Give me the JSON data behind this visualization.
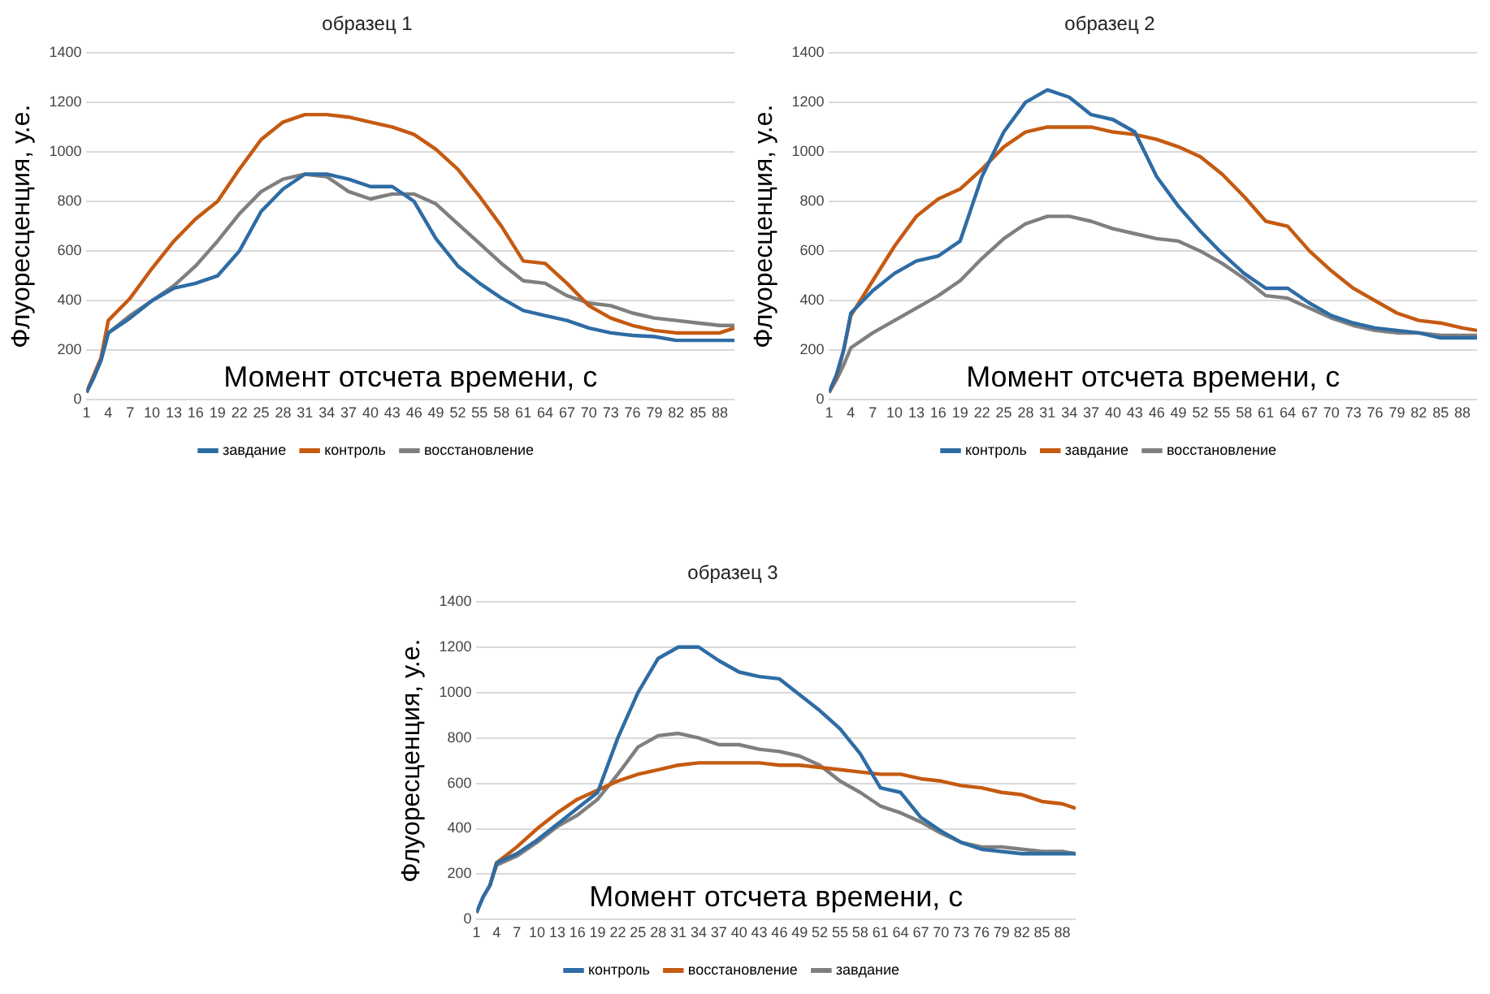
{
  "chart_data": [
    {
      "type": "line",
      "title": "образец 1",
      "xlabel": "Момент отсчета времени, с",
      "ylabel": "Флуоресценция, у.е.",
      "xlim": [
        1,
        90
      ],
      "xticks": [
        1,
        4,
        7,
        10,
        13,
        16,
        19,
        22,
        25,
        28,
        31,
        34,
        37,
        40,
        43,
        46,
        49,
        52,
        55,
        58,
        61,
        64,
        67,
        70,
        73,
        76,
        79,
        82,
        85,
        88
      ],
      "ylim": [
        0,
        1400
      ],
      "yticks": [
        0,
        200,
        400,
        600,
        800,
        1000,
        1200,
        1400
      ],
      "grid": "y",
      "legend": "bottom",
      "marker": "none",
      "line_style": "solid",
      "x": [
        1,
        2,
        3,
        4,
        7,
        10,
        13,
        16,
        19,
        22,
        25,
        28,
        31,
        34,
        37,
        40,
        43,
        46,
        49,
        52,
        55,
        58,
        61,
        64,
        67,
        70,
        73,
        76,
        79,
        82,
        85,
        88,
        90
      ],
      "series": [
        {
          "name": "завдание",
          "color": "#2e6ca4",
          "values": [
            30,
            90,
            160,
            270,
            330,
            400,
            450,
            470,
            500,
            600,
            760,
            850,
            910,
            910,
            890,
            860,
            860,
            800,
            650,
            540,
            470,
            410,
            360,
            340,
            320,
            290,
            270,
            260,
            255,
            240,
            240,
            240,
            240
          ]
        },
        {
          "name": "контроль",
          "color": "#c55a11",
          "values": [
            30,
            100,
            170,
            320,
            410,
            530,
            640,
            730,
            800,
            930,
            1050,
            1120,
            1150,
            1150,
            1140,
            1120,
            1100,
            1070,
            1010,
            930,
            820,
            700,
            560,
            550,
            470,
            380,
            330,
            300,
            280,
            270,
            270,
            270,
            290
          ]
        },
        {
          "name": "восстановление",
          "color": "#7f7f7f",
          "values": [
            30,
            90,
            160,
            270,
            340,
            400,
            460,
            540,
            640,
            750,
            840,
            890,
            910,
            900,
            840,
            810,
            830,
            830,
            790,
            710,
            630,
            550,
            480,
            470,
            420,
            390,
            380,
            350,
            330,
            320,
            310,
            300,
            300
          ]
        }
      ]
    },
    {
      "type": "line",
      "title": "образец 2",
      "xlabel": "Момент отсчета времени, с",
      "ylabel": "Флуоресценция, у.е.",
      "xlim": [
        1,
        90
      ],
      "xticks": [
        1,
        4,
        7,
        10,
        13,
        16,
        19,
        22,
        25,
        28,
        31,
        34,
        37,
        40,
        43,
        46,
        49,
        52,
        55,
        58,
        61,
        64,
        67,
        70,
        73,
        76,
        79,
        82,
        85,
        88
      ],
      "ylim": [
        0,
        1400
      ],
      "yticks": [
        0,
        200,
        400,
        600,
        800,
        1000,
        1200,
        1400
      ],
      "grid": "y",
      "legend": "bottom",
      "marker": "none",
      "line_style": "solid",
      "x": [
        1,
        2,
        3,
        4,
        7,
        10,
        13,
        16,
        19,
        22,
        25,
        28,
        31,
        34,
        37,
        40,
        43,
        46,
        49,
        52,
        55,
        58,
        61,
        64,
        67,
        70,
        73,
        76,
        79,
        82,
        85,
        88,
        90
      ],
      "series": [
        {
          "name": "контроль",
          "color": "#2e6ca4",
          "values": [
            30,
            100,
            200,
            350,
            440,
            510,
            560,
            580,
            640,
            900,
            1080,
            1200,
            1250,
            1220,
            1150,
            1130,
            1080,
            900,
            780,
            680,
            590,
            510,
            450,
            450,
            390,
            340,
            310,
            290,
            280,
            270,
            250,
            250,
            250
          ]
        },
        {
          "name": "завдание",
          "color": "#c55a11",
          "values": [
            30,
            90,
            200,
            340,
            480,
            620,
            740,
            810,
            850,
            930,
            1020,
            1080,
            1100,
            1100,
            1100,
            1080,
            1070,
            1050,
            1020,
            980,
            910,
            820,
            720,
            700,
            600,
            520,
            450,
            400,
            350,
            320,
            310,
            290,
            280
          ]
        },
        {
          "name": "восстановление",
          "color": "#7f7f7f",
          "values": [
            30,
            80,
            140,
            210,
            270,
            320,
            370,
            420,
            480,
            570,
            650,
            710,
            740,
            740,
            720,
            690,
            670,
            650,
            640,
            600,
            550,
            490,
            420,
            410,
            370,
            330,
            300,
            280,
            270,
            270,
            260,
            260,
            260
          ]
        }
      ]
    },
    {
      "type": "line",
      "title": "образец 3",
      "xlabel": "Момент отсчета времени, с",
      "ylabel": "Флуоресценция, у.е.",
      "xlim": [
        1,
        90
      ],
      "xticks": [
        1,
        4,
        7,
        10,
        13,
        16,
        19,
        22,
        25,
        28,
        31,
        34,
        37,
        40,
        43,
        46,
        49,
        52,
        55,
        58,
        61,
        64,
        67,
        70,
        73,
        76,
        79,
        82,
        85,
        88
      ],
      "ylim": [
        0,
        1400
      ],
      "yticks": [
        0,
        200,
        400,
        600,
        800,
        1000,
        1200,
        1400
      ],
      "grid": "y",
      "legend": "bottom",
      "marker": "none",
      "line_style": "solid",
      "x": [
        1,
        2,
        3,
        4,
        7,
        10,
        13,
        16,
        19,
        22,
        25,
        28,
        31,
        34,
        37,
        40,
        43,
        46,
        49,
        52,
        55,
        58,
        61,
        64,
        67,
        70,
        73,
        76,
        79,
        82,
        85,
        88,
        90
      ],
      "series": [
        {
          "name": "контроль",
          "color": "#2e6ca4",
          "values": [
            30,
            100,
            150,
            250,
            290,
            350,
            420,
            490,
            560,
            800,
            1000,
            1150,
            1200,
            1200,
            1140,
            1090,
            1070,
            1060,
            990,
            920,
            840,
            730,
            580,
            560,
            450,
            390,
            340,
            310,
            300,
            290,
            290,
            290,
            290
          ]
        },
        {
          "name": "восстановление",
          "color": "#c55a11",
          "values": [
            null,
            null,
            150,
            250,
            320,
            400,
            470,
            530,
            570,
            610,
            640,
            660,
            680,
            690,
            690,
            690,
            690,
            680,
            680,
            670,
            660,
            650,
            640,
            640,
            620,
            610,
            590,
            580,
            560,
            550,
            520,
            510,
            490
          ]
        },
        {
          "name": "завдание",
          "color": "#7f7f7f",
          "values": [
            30,
            100,
            150,
            240,
            280,
            340,
            410,
            460,
            530,
            640,
            760,
            810,
            820,
            800,
            770,
            770,
            750,
            740,
            720,
            680,
            610,
            560,
            500,
            470,
            430,
            380,
            340,
            320,
            320,
            310,
            300,
            300,
            290
          ]
        }
      ]
    }
  ]
}
